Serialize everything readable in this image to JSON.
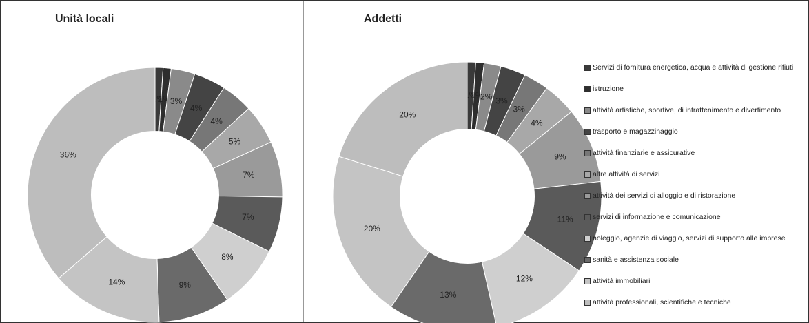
{
  "chart_data": [
    {
      "type": "pie",
      "title": "Unità locali",
      "categories": [
        "Servizi di fornitura energetica, acqua e attività di gestione rifiuti",
        "istruzione",
        "attività artistiche, sportive, di intrattenimento e divertimento",
        "trasporto e magazzinaggio",
        "attività finanziarie e assicurative",
        "altre attività di servizi",
        "attività dei servizi di alloggio e di ristorazione",
        "servizi di informazione e comunicazione",
        "noleggio, agenzie di viaggio, servizi di supporto alle imprese",
        "sanità e assistenza sociale",
        "attività immobiliari",
        "attività professionali, scientifiche e tecniche"
      ],
      "values": [
        1,
        1,
        3,
        4,
        4,
        5,
        7,
        7,
        8,
        9,
        14,
        36
      ],
      "value_labels": [
        "1%",
        "1%",
        "3%",
        "4%",
        "4%",
        "5%",
        "7%",
        "7%",
        "8%",
        "9%",
        "14%",
        "36%"
      ],
      "colors": [
        "#3a3a3a",
        "#2e2e2e",
        "#8a8a8a",
        "#444444",
        "#777777",
        "#a8a8a8",
        "#9a9a9a",
        "#5a5a5a",
        "#cfcfcf",
        "#6a6a6a",
        "#c4c4c4",
        "#bdbdbd"
      ]
    },
    {
      "type": "pie",
      "title": "Addetti",
      "categories": [
        "Servizi di fornitura energetica, acqua e attività di gestione rifiuti",
        "istruzione",
        "attività artistiche, sportive, di intrattenimento e divertimento",
        "trasporto e magazzinaggio",
        "attività finanziarie e assicurative",
        "altre attività di servizi",
        "attività dei servizi di alloggio e di ristorazione",
        "servizi di informazione e comunicazione",
        "noleggio, agenzie di viaggio, servizi di supporto alle imprese",
        "sanità e assistenza sociale",
        "attività immobiliari",
        "attività professionali, scientifiche e tecniche"
      ],
      "values": [
        1,
        1,
        2,
        3,
        3,
        4,
        9,
        11,
        12,
        13,
        20,
        20
      ],
      "value_labels": [
        "1%",
        "1%",
        "2%",
        "3%",
        "3%",
        "4%",
        "9%",
        "11%",
        "12%",
        "13%",
        "20%",
        "20%"
      ],
      "colors": [
        "#3a3a3a",
        "#2e2e2e",
        "#8a8a8a",
        "#444444",
        "#777777",
        "#a8a8a8",
        "#9a9a9a",
        "#5a5a5a",
        "#cfcfcf",
        "#6a6a6a",
        "#c4c4c4",
        "#bdbdbd"
      ]
    }
  ]
}
